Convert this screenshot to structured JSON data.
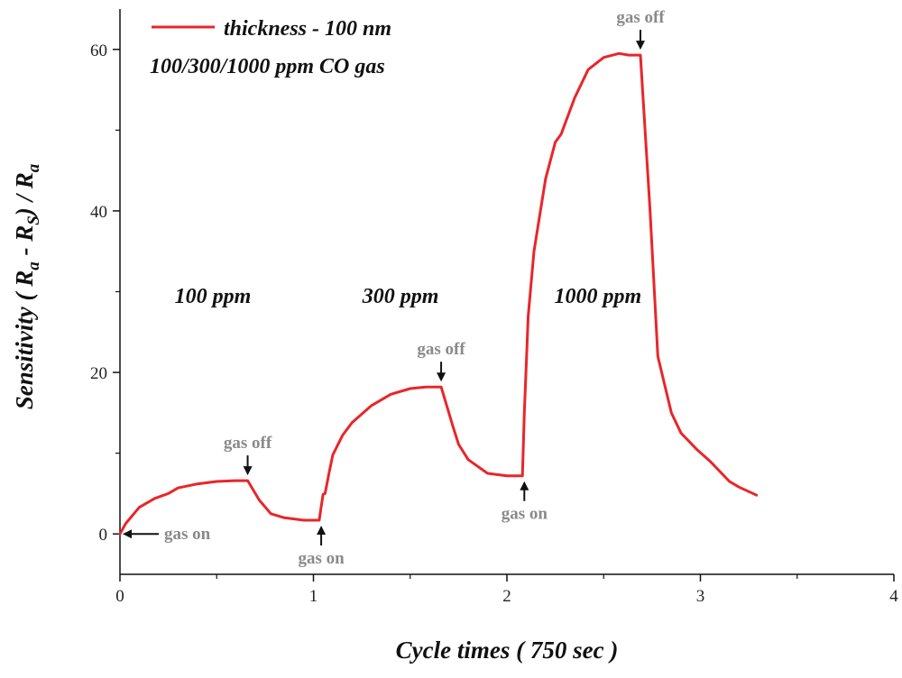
{
  "chart_data": {
    "type": "line",
    "xlabel": "Cycle times ( 750 sec )",
    "ylabel": "Sensitivity ( Ra - RS) / Ra",
    "xlim": [
      0,
      4
    ],
    "ylim": [
      -5,
      65
    ],
    "x_ticks": [
      "0",
      "1",
      "2",
      "3",
      "4"
    ],
    "y_ticks": [
      "0",
      "20",
      "40",
      "60"
    ],
    "grid": false,
    "legend_position": "top-left",
    "series": [
      {
        "name": "thickness - 100 nm",
        "color": "#e8262a",
        "x": [
          0,
          0.03,
          0.1,
          0.18,
          0.25,
          0.3,
          0.4,
          0.5,
          0.6,
          0.66,
          0.72,
          0.78,
          0.85,
          0.95,
          1.03,
          1.04,
          1.05,
          1.06,
          1.08,
          1.1,
          1.15,
          1.2,
          1.3,
          1.4,
          1.5,
          1.58,
          1.66,
          1.72,
          1.75,
          1.8,
          1.9,
          2.0,
          2.08,
          2.09,
          2.11,
          2.14,
          2.2,
          2.25,
          2.28,
          2.35,
          2.42,
          2.5,
          2.58,
          2.63,
          2.69,
          2.74,
          2.78,
          2.85,
          2.9,
          2.98,
          3.05,
          3.15,
          3.2,
          3.29
        ],
        "y": [
          0,
          1.3,
          3.3,
          4.4,
          5.0,
          5.7,
          6.2,
          6.5,
          6.6,
          6.6,
          4.2,
          2.5,
          2.0,
          1.7,
          1.7,
          3.4,
          4.9,
          5.0,
          7.5,
          9.8,
          12.2,
          13.8,
          15.9,
          17.3,
          18.0,
          18.2,
          18.2,
          13.4,
          11.1,
          9.2,
          7.5,
          7.2,
          7.2,
          15.0,
          27.0,
          35.0,
          44.0,
          48.5,
          49.5,
          54.0,
          57.5,
          59.0,
          59.5,
          59.3,
          59.3,
          40.0,
          22.0,
          15.0,
          12.5,
          10.5,
          9.0,
          6.5,
          5.8,
          4.8
        ]
      }
    ],
    "legend": {
      "line1": "thickness - 100 nm",
      "line2": "100/300/1000 ppm CO gas"
    },
    "region_labels": [
      {
        "text": "100 ppm",
        "x": 0.48,
        "y": 29.5
      },
      {
        "text": "300 ppm",
        "x": 1.45,
        "y": 29.5
      },
      {
        "text": "1000 ppm",
        "x": 2.47,
        "y": 29.5
      }
    ],
    "annotations": [
      {
        "text": "gas on",
        "x": 0.0,
        "y": 0.0,
        "direction": "left"
      },
      {
        "text": "gas off",
        "x": 0.66,
        "y": 6.6,
        "direction": "down"
      },
      {
        "text": "gas on",
        "x": 1.04,
        "y": 1.7,
        "direction": "up"
      },
      {
        "text": "gas off",
        "x": 1.66,
        "y": 18.2,
        "direction": "down"
      },
      {
        "text": "gas on",
        "x": 2.09,
        "y": 7.2,
        "direction": "up"
      },
      {
        "text": "gas off",
        "x": 2.69,
        "y": 59.3,
        "direction": "down"
      }
    ]
  }
}
